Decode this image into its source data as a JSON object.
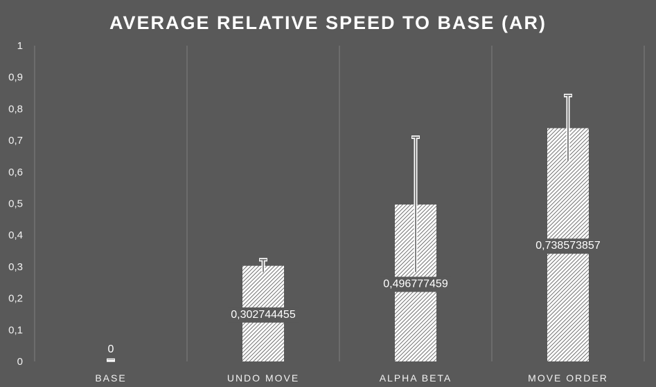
{
  "chart_data": {
    "type": "bar",
    "title": "AVERAGE RELATIVE SPEED TO BASE (AR)",
    "categories": [
      "BASE",
      "UNDO MOVE",
      "ALPHA BETA",
      "MOVE ORDER"
    ],
    "values": [
      0,
      0.302744455,
      0.496777459,
      0.738573857
    ],
    "data_labels": [
      "0",
      "0,302744455",
      "0,496777459",
      "0,738573857"
    ],
    "error_bars": {
      "upper": [
        0.004,
        0.322,
        0.71,
        0.842
      ],
      "lower": [
        0,
        0.283,
        0.283,
        0.635
      ]
    },
    "y_ticks": [
      "0",
      "0,1",
      "0,2",
      "0,3",
      "0,4",
      "0,5",
      "0,6",
      "0,7",
      "0,8",
      "0,9",
      "1"
    ],
    "ylim": [
      0,
      1
    ],
    "grid": "vertical-category-separators",
    "legend": "none",
    "colors": {
      "background": "#595959",
      "bar_hatch": "#ffffff",
      "bar_base": "#595959",
      "gridline": "#7f7f7f",
      "text": "#f2f2f2"
    }
  }
}
